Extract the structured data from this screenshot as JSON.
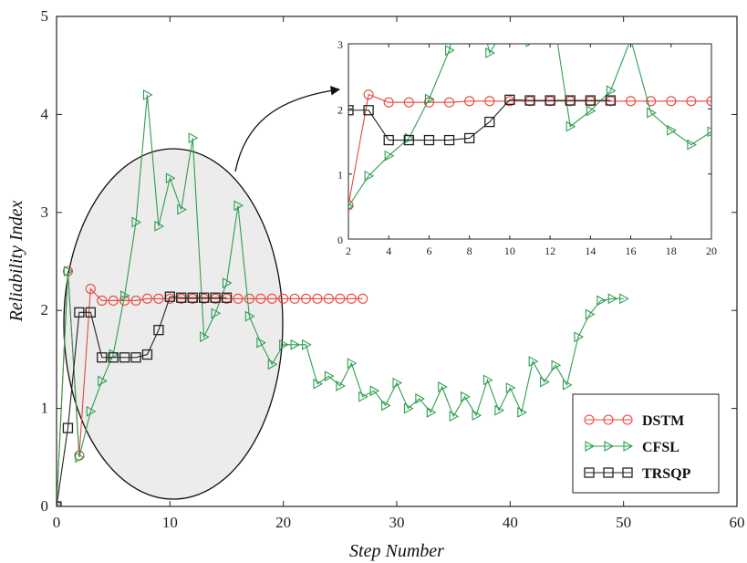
{
  "chart_data": [
    {
      "type": "line",
      "title": "",
      "xlabel": "Step Number",
      "ylabel": "Reliability Index",
      "xlim": [
        0,
        60
      ],
      "ylim": [
        0,
        5
      ],
      "xticks": [
        "0",
        "10",
        "20",
        "30",
        "40",
        "50",
        "60"
      ],
      "yticks": [
        "0",
        "1",
        "2",
        "3",
        "4",
        "5"
      ],
      "grid": false,
      "legend_position": "bottom-right",
      "series": [
        {
          "name": "DSTM",
          "color": "#e8463c",
          "marker": "circle",
          "x": [
            0,
            1,
            2,
            3,
            4,
            5,
            6,
            7,
            8,
            9,
            10,
            11,
            12,
            13,
            14,
            15,
            16,
            17,
            18,
            19,
            20,
            21,
            22,
            23,
            24,
            25,
            26,
            27
          ],
          "y": [
            0,
            2.4,
            0.52,
            2.22,
            2.1,
            2.1,
            2.1,
            2.1,
            2.12,
            2.12,
            2.12,
            2.12,
            2.12,
            2.12,
            2.12,
            2.12,
            2.12,
            2.12,
            2.12,
            2.12,
            2.12,
            2.12,
            2.12,
            2.12,
            2.12,
            2.12,
            2.12,
            2.12
          ]
        },
        {
          "name": "CFSL",
          "color": "#2e9e52",
          "marker": "triangle-right",
          "x": [
            0,
            1,
            2,
            3,
            4,
            5,
            6,
            7,
            8,
            9,
            10,
            11,
            12,
            13,
            14,
            15,
            16,
            17,
            18,
            19,
            20,
            21,
            22,
            23,
            24,
            25,
            26,
            27,
            28,
            29,
            30,
            31,
            32,
            33,
            34,
            35,
            36,
            37,
            38,
            39,
            40,
            41,
            42,
            43,
            44,
            45,
            46,
            47,
            48,
            49,
            50
          ],
          "y": [
            0,
            2.4,
            0.5,
            0.97,
            1.28,
            1.55,
            2.15,
            2.9,
            4.2,
            2.86,
            3.35,
            3.03,
            3.76,
            1.73,
            1.97,
            2.28,
            3.07,
            1.94,
            1.67,
            1.45,
            1.65,
            1.65,
            1.65,
            1.25,
            1.33,
            1.23,
            1.46,
            1.12,
            1.18,
            1.03,
            1.26,
            1.0,
            1.1,
            0.96,
            1.22,
            0.92,
            1.12,
            0.93,
            1.29,
            0.98,
            1.21,
            0.96,
            1.48,
            1.27,
            1.44,
            1.24,
            1.73,
            1.96,
            2.1,
            2.12,
            2.12
          ]
        },
        {
          "name": "TRSQP",
          "color": "#222222",
          "marker": "square",
          "x": [
            0,
            1,
            2,
            3,
            4,
            5,
            6,
            7,
            8,
            9,
            10,
            11,
            12,
            13,
            14,
            15
          ],
          "y": [
            0,
            0.8,
            1.98,
            1.98,
            1.52,
            1.52,
            1.52,
            1.52,
            1.55,
            1.8,
            2.14,
            2.13,
            2.13,
            2.13,
            2.13,
            2.13
          ]
        }
      ]
    },
    {
      "type": "line",
      "title": "",
      "inset": true,
      "xlim": [
        2,
        20
      ],
      "ylim": [
        0,
        3
      ],
      "xticks": [
        "2",
        "4",
        "6",
        "8",
        "10",
        "12",
        "14",
        "16",
        "18",
        "20"
      ],
      "yticks": [
        "0",
        "1",
        "2",
        "3"
      ],
      "series": [
        {
          "name": "DSTM",
          "x": [
            2,
            3,
            4,
            5,
            6,
            7,
            8,
            9,
            10,
            11,
            12,
            13,
            14,
            15,
            16,
            17,
            18,
            19,
            20
          ],
          "y": [
            0.52,
            2.22,
            2.1,
            2.1,
            2.1,
            2.1,
            2.12,
            2.12,
            2.12,
            2.12,
            2.12,
            2.12,
            2.12,
            2.12,
            2.12,
            2.12,
            2.12,
            2.12,
            2.12
          ]
        },
        {
          "name": "CFSL",
          "x": [
            2,
            3,
            4,
            5,
            6,
            7,
            8,
            9,
            10,
            11,
            12,
            13,
            14,
            15,
            16,
            17,
            18,
            19,
            20
          ],
          "y": [
            0.5,
            0.97,
            1.28,
            1.55,
            2.15,
            2.9,
            4.2,
            2.86,
            3.35,
            3.03,
            3.76,
            1.73,
            1.97,
            2.28,
            3.07,
            1.94,
            1.67,
            1.45,
            1.65
          ]
        },
        {
          "name": "TRSQP",
          "x": [
            2,
            3,
            4,
            5,
            6,
            7,
            8,
            9,
            10,
            11,
            12,
            13,
            14,
            15
          ],
          "y": [
            1.98,
            1.98,
            1.52,
            1.52,
            1.52,
            1.52,
            1.55,
            1.8,
            2.14,
            2.13,
            2.13,
            2.13,
            2.13,
            2.13
          ]
        }
      ]
    }
  ]
}
